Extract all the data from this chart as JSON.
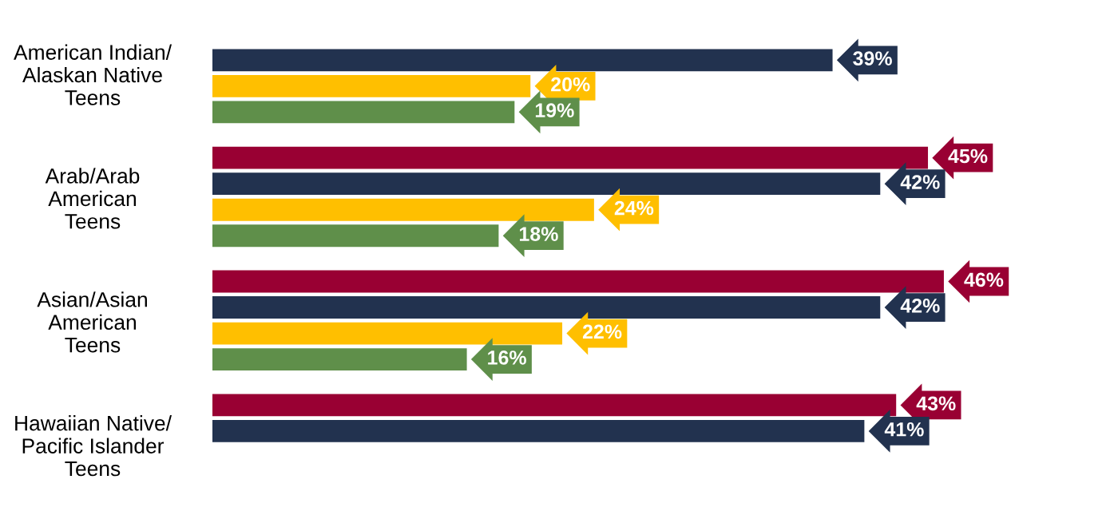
{
  "chart_data": {
    "type": "bar",
    "orientation": "horizontal",
    "categories": [
      "American Indian/\nAlaskan Native\nTeens",
      "Arab/Arab\nAmerican\nTeens",
      "Asian/Asian\nAmerican\nTeens",
      "Hawaiian Native/\nPacific Islander\nTeens"
    ],
    "series": [
      {
        "color": "#990033",
        "values": [
          null,
          45,
          46,
          43
        ],
        "value_labels": [
          null,
          "45%",
          "46%",
          "43%"
        ]
      },
      {
        "color": "#22324f",
        "values": [
          39,
          42,
          42,
          41
        ],
        "value_labels": [
          "39%",
          "42%",
          "42%",
          "41%"
        ]
      },
      {
        "color": "#ffbf00",
        "values": [
          20,
          24,
          22,
          null
        ],
        "value_labels": [
          "20%",
          "24%",
          "22%",
          null
        ]
      },
      {
        "color": "#5f8f4a",
        "values": [
          19,
          18,
          16,
          null
        ],
        "value_labels": [
          "19%",
          "18%",
          "16%",
          null
        ]
      }
    ],
    "grid": false,
    "legend": false,
    "tick_labels": "y"
  }
}
